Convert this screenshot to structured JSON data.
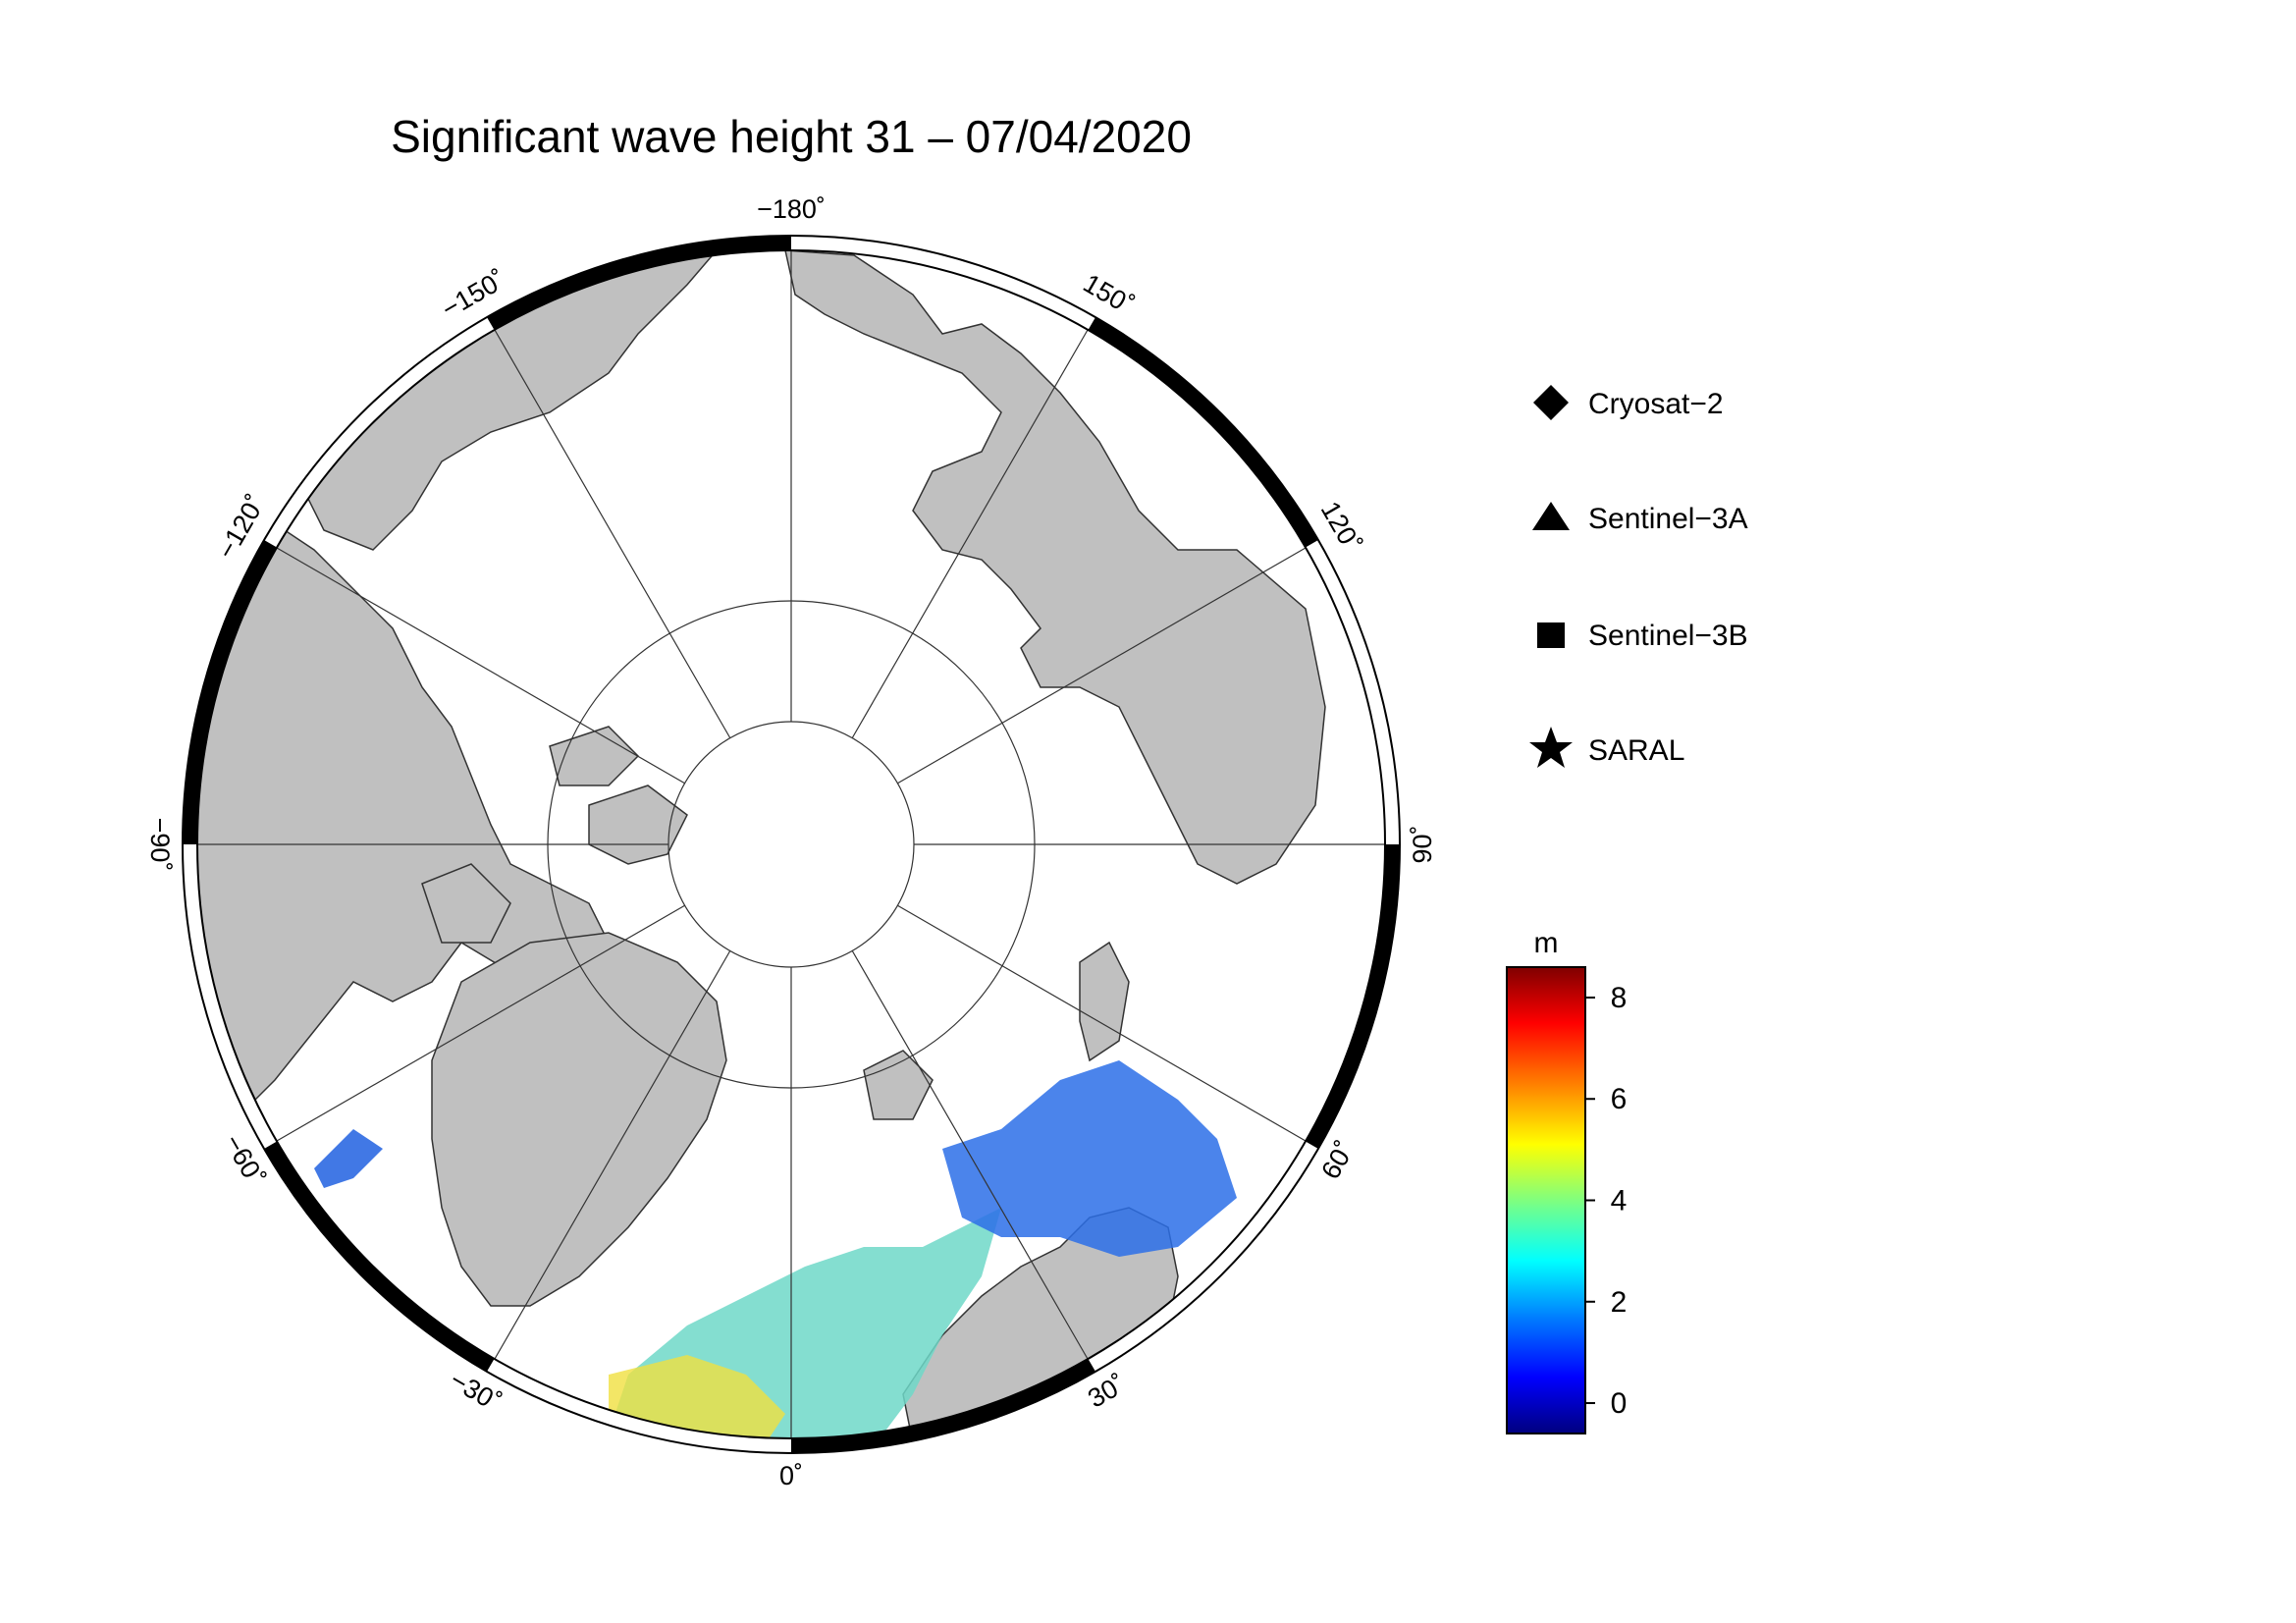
{
  "title": "Significant wave height 31 – 07/04/2020",
  "map": {
    "projection": "north-polar-stereographic",
    "land_color": "#c0c0c0",
    "ocean_color": "#ffffff",
    "longitude_labels": [
      {
        "lon": 180,
        "text": "−180˚"
      },
      {
        "lon": 150,
        "text": "150˚"
      },
      {
        "lon": 120,
        "text": "120˚"
      },
      {
        "lon": 90,
        "text": "90˚"
      },
      {
        "lon": 60,
        "text": "60˚"
      },
      {
        "lon": 30,
        "text": "30˚"
      },
      {
        "lon": 0,
        "text": "0˚"
      },
      {
        "lon": -30,
        "text": "−30˚"
      },
      {
        "lon": -60,
        "text": "−60˚"
      },
      {
        "lon": -90,
        "text": "−90˚"
      },
      {
        "lon": -120,
        "text": "−120˚"
      },
      {
        "lon": -150,
        "text": "−150˚"
      }
    ]
  },
  "legend": {
    "items": [
      {
        "label": "Cryosat−2",
        "marker": "diamond-icon"
      },
      {
        "label": "Sentinel−3A",
        "marker": "triangle-icon"
      },
      {
        "label": "Sentinel−3B",
        "marker": "square-icon"
      },
      {
        "label": "SARAL",
        "marker": "star-icon"
      }
    ]
  },
  "colorbar": {
    "unit": "m",
    "min": -0.6,
    "max": 8.6,
    "ticks": [
      {
        "value": 0,
        "label": "0"
      },
      {
        "value": 2,
        "label": "2"
      },
      {
        "value": 4,
        "label": "4"
      },
      {
        "value": 6,
        "label": "6"
      },
      {
        "value": 8,
        "label": "8"
      }
    ],
    "colors": [
      "#00007f",
      "#0000ff",
      "#007fff",
      "#00ffff",
      "#7fff7f",
      "#ffff00",
      "#ff7f00",
      "#ff0000",
      "#7f0000"
    ]
  }
}
